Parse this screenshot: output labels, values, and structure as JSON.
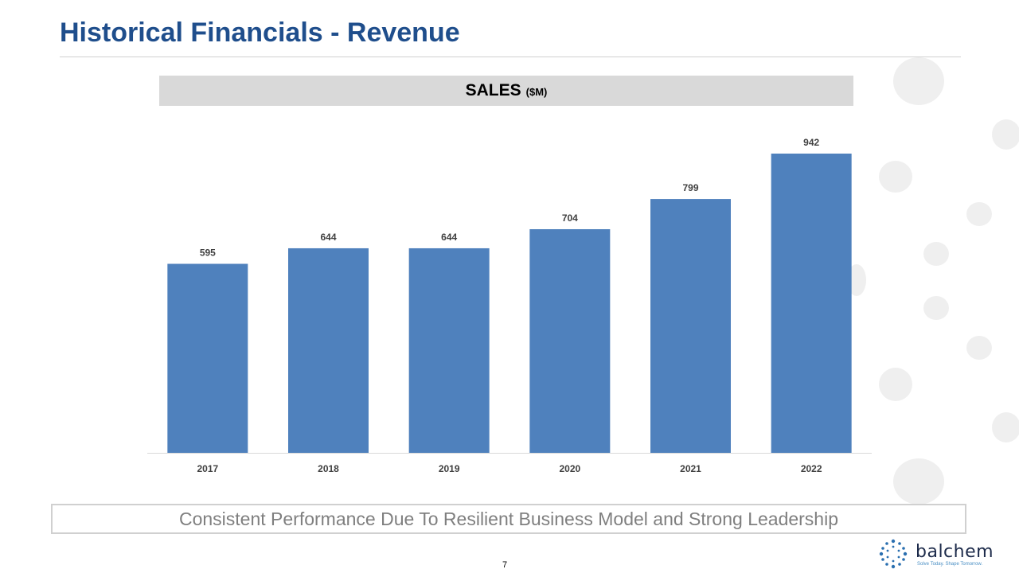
{
  "slide": {
    "title": "Historical Financials - Revenue",
    "takeaway": "Consistent Performance Due To Resilient Business Model and Strong Leadership",
    "page_number": "7"
  },
  "chart_header": {
    "main": "SALES",
    "unit": "($M)"
  },
  "brand": {
    "name": "balchem",
    "tagline": "Solve Today. Shape Tomorrow.",
    "colors": {
      "title": "#1f4e8c",
      "bar": "#4f81bd",
      "header_bg": "#d9d9d9",
      "takeaway_text": "#7f7f7f"
    }
  },
  "chart_data": {
    "type": "bar",
    "categories": [
      "2017",
      "2018",
      "2019",
      "2020",
      "2021",
      "2022"
    ],
    "values": [
      595,
      644,
      644,
      704,
      799,
      942
    ],
    "data_labels": [
      "595",
      "644",
      "644",
      "704",
      "799",
      "942"
    ],
    "title": "SALES ($M)",
    "xlabel": "",
    "ylabel": "",
    "ylim": [
      0,
      1000
    ],
    "grid": false,
    "legend": "none"
  }
}
